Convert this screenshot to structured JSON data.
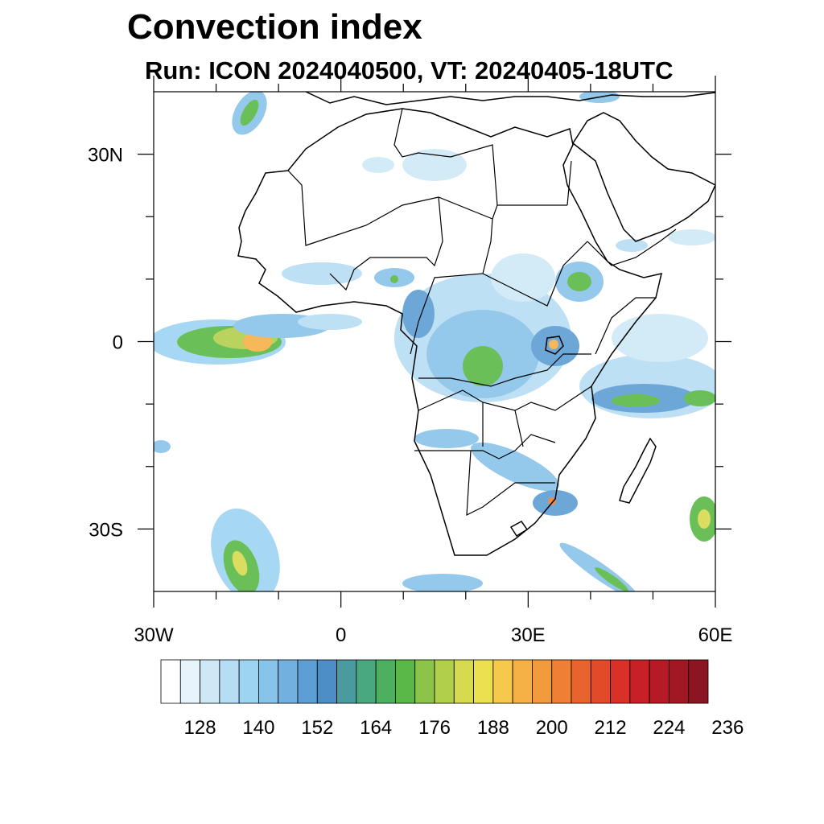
{
  "title": "Convection index",
  "subtitle": "Run: ICON 2024040500,  VT: 20240405-18UTC",
  "map": {
    "lon_range": [
      -30,
      60
    ],
    "lat_range": [
      -40,
      40
    ],
    "lat_ticks": [
      {
        "value": 30,
        "label": "30N"
      },
      {
        "value": 0,
        "label": "0"
      },
      {
        "value": -30,
        "label": "30S"
      }
    ],
    "lon_ticks": [
      {
        "value": -30,
        "label": "30W"
      },
      {
        "value": 0,
        "label": "0"
      },
      {
        "value": 30,
        "label": "30E"
      },
      {
        "value": 60,
        "label": "60E"
      }
    ],
    "minor_lon_ticks": [
      -20,
      -10,
      10,
      20,
      40,
      50
    ],
    "minor_lat_ticks": [
      20,
      10,
      -10,
      -20
    ]
  },
  "colorbar": {
    "colors": [
      "#ffffff",
      "#e8f4fb",
      "#cfe8f6",
      "#b6ddf3",
      "#9dd4f2",
      "#88c3ea",
      "#72b0e0",
      "#5d9ed4",
      "#4d8ec7",
      "#4a9ba0",
      "#4aa87e",
      "#4cb060",
      "#5ab846",
      "#8cc44a",
      "#b2cf4c",
      "#d6da4e",
      "#ecdf50",
      "#f6c94c",
      "#f5b046",
      "#f29a3e",
      "#ee7f34",
      "#e9642d",
      "#e24a2a",
      "#d93128",
      "#c82027",
      "#b51a26",
      "#a11822",
      "#8b1520"
    ],
    "labels": [
      "128",
      "140",
      "152",
      "164",
      "176",
      "188",
      "200",
      "212",
      "224",
      "236"
    ]
  }
}
